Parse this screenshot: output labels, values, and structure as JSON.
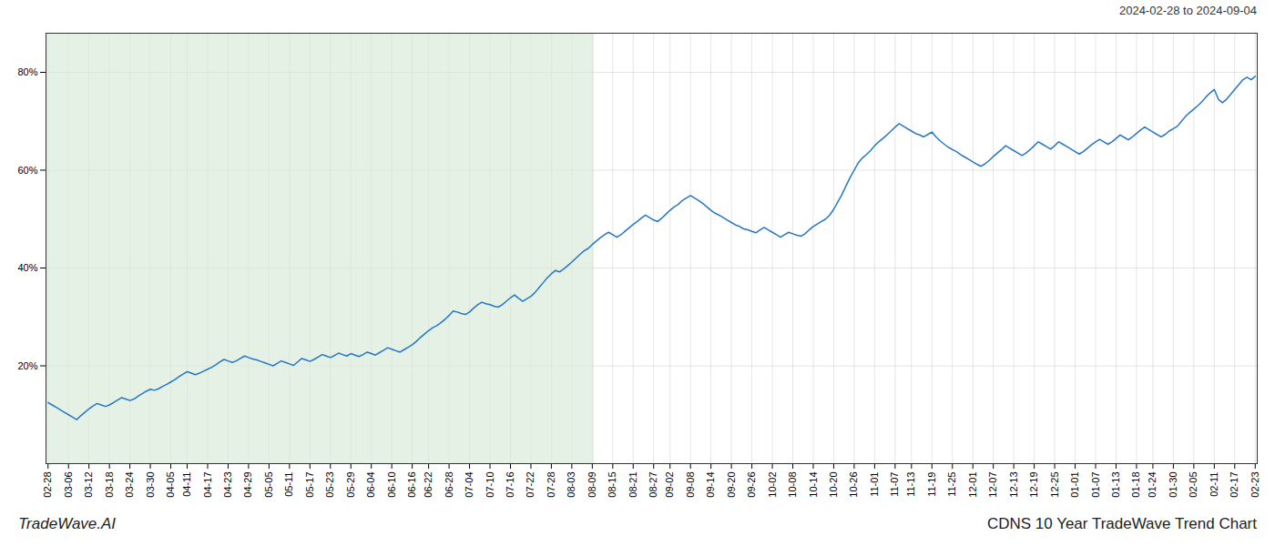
{
  "chart_data": {
    "type": "line",
    "title": "CDNS 10 Year TradeWave Trend Chart",
    "subtitle": "2024-02-28 to 2024-09-04",
    "annotations": [
      "TradeWave.AI"
    ],
    "color": "#2676c8",
    "grid": true,
    "ylim": [
      0,
      88
    ],
    "yticks": [
      {
        "value": 20,
        "label": "20%"
      },
      {
        "value": 40,
        "label": "40%"
      },
      {
        "value": 60,
        "label": "60%"
      },
      {
        "value": 80,
        "label": "80%"
      }
    ],
    "shaded_span": {
      "start": 0,
      "end": 133,
      "color": "#d6ead6"
    },
    "categories": [
      "02-28",
      null,
      null,
      null,
      null,
      "03-06",
      null,
      null,
      null,
      null,
      "03-12",
      null,
      null,
      null,
      null,
      "03-18",
      null,
      null,
      null,
      null,
      "03-24",
      null,
      null,
      null,
      null,
      "03-30",
      null,
      null,
      null,
      null,
      "04-05",
      null,
      null,
      null,
      "04-11",
      null,
      null,
      null,
      null,
      "04-17",
      null,
      null,
      null,
      null,
      "04-23",
      null,
      null,
      null,
      null,
      "04-29",
      null,
      null,
      null,
      null,
      "05-05",
      null,
      null,
      null,
      null,
      "05-11",
      null,
      null,
      null,
      null,
      "05-17",
      null,
      null,
      null,
      null,
      "05-23",
      null,
      null,
      null,
      null,
      "05-29",
      null,
      null,
      null,
      null,
      "06-04",
      null,
      null,
      null,
      null,
      "06-10",
      null,
      null,
      null,
      null,
      "06-16",
      null,
      null,
      null,
      "06-22",
      null,
      null,
      null,
      null,
      "06-28",
      null,
      null,
      null,
      null,
      "07-04",
      null,
      null,
      null,
      null,
      "07-10",
      null,
      null,
      null,
      null,
      "07-16",
      null,
      null,
      null,
      null,
      "07-22",
      null,
      null,
      null,
      null,
      "07-28",
      null,
      null,
      null,
      null,
      "08-03",
      null,
      null,
      null,
      null,
      "08-09",
      null,
      null,
      null,
      null,
      "08-15",
      null,
      null,
      null,
      null,
      "08-21",
      null,
      null,
      null,
      null,
      "08-27",
      null,
      null,
      null,
      "09-02",
      null,
      null,
      null,
      null,
      "09-08",
      null,
      null,
      null,
      null,
      "09-14",
      null,
      null,
      null,
      null,
      "09-20",
      null,
      null,
      null,
      null,
      "09-26",
      null,
      null,
      null,
      null,
      "10-02",
      null,
      null,
      null,
      null,
      "10-08",
      null,
      null,
      null,
      null,
      "10-14",
      null,
      null,
      null,
      null,
      "10-20",
      null,
      null,
      null,
      null,
      "10-26",
      null,
      null,
      null,
      null,
      "11-01",
      null,
      null,
      null,
      null,
      "11-07",
      null,
      null,
      null,
      "11-13",
      null,
      null,
      null,
      null,
      "11-19",
      null,
      null,
      null,
      null,
      "11-25",
      null,
      null,
      null,
      null,
      "12-01",
      null,
      null,
      null,
      null,
      "12-07",
      null,
      null,
      null,
      null,
      "12-13",
      null,
      null,
      null,
      null,
      "12-19",
      null,
      null,
      null,
      null,
      "12-25",
      null,
      null,
      null,
      null,
      "01-01",
      null,
      null,
      null,
      null,
      "01-07",
      null,
      null,
      null,
      null,
      "01-13",
      null,
      null,
      null,
      null,
      "01-18",
      null,
      null,
      null,
      "01-24",
      null,
      null,
      null,
      null,
      "01-30",
      null,
      null,
      null,
      null,
      "02-05",
      null,
      null,
      null,
      null,
      "02-11",
      null,
      null,
      null,
      null,
      "02-17",
      null,
      null,
      null,
      null,
      "02-23"
    ],
    "values": [
      12.5,
      12.0,
      11.5,
      11.0,
      10.5,
      10.0,
      9.5,
      9.0,
      9.8,
      10.5,
      11.2,
      11.8,
      12.3,
      12.0,
      11.7,
      12.0,
      12.5,
      13.0,
      13.5,
      13.2,
      12.9,
      13.2,
      13.8,
      14.3,
      14.8,
      15.2,
      15.0,
      15.3,
      15.8,
      16.2,
      16.7,
      17.2,
      17.8,
      18.3,
      18.8,
      18.5,
      18.2,
      18.5,
      18.9,
      19.3,
      19.7,
      20.2,
      20.8,
      21.3,
      21.0,
      20.7,
      21.0,
      21.5,
      22.0,
      21.7,
      21.4,
      21.2,
      20.9,
      20.6,
      20.3,
      20.0,
      20.5,
      21.0,
      20.7,
      20.4,
      20.1,
      20.8,
      21.5,
      21.2,
      20.9,
      21.3,
      21.8,
      22.3,
      22.0,
      21.7,
      22.1,
      22.6,
      22.3,
      22.0,
      22.5,
      22.2,
      21.9,
      22.3,
      22.8,
      22.5,
      22.2,
      22.7,
      23.2,
      23.7,
      23.4,
      23.1,
      22.8,
      23.3,
      23.8,
      24.3,
      25.0,
      25.8,
      26.5,
      27.2,
      27.8,
      28.2,
      28.8,
      29.5,
      30.3,
      31.2,
      31.0,
      30.7,
      30.5,
      31.0,
      31.8,
      32.5,
      33.0,
      32.7,
      32.5,
      32.2,
      32.0,
      32.5,
      33.2,
      33.9,
      34.5,
      33.8,
      33.2,
      33.7,
      34.2,
      35.0,
      36.0,
      37.0,
      38.0,
      38.8,
      39.5,
      39.2,
      39.8,
      40.5,
      41.2,
      42.0,
      42.8,
      43.5,
      44.0,
      44.8,
      45.5,
      46.2,
      46.8,
      47.3,
      46.8,
      46.3,
      46.8,
      47.5,
      48.2,
      48.9,
      49.5,
      50.2,
      50.8,
      50.3,
      49.8,
      49.5,
      50.2,
      51.0,
      51.8,
      52.5,
      53.0,
      53.8,
      54.3,
      54.8,
      54.3,
      53.8,
      53.2,
      52.5,
      51.8,
      51.2,
      50.8,
      50.3,
      49.8,
      49.3,
      48.8,
      48.5,
      48.0,
      47.8,
      47.5,
      47.2,
      47.8,
      48.3,
      47.8,
      47.3,
      46.8,
      46.3,
      46.8,
      47.3,
      47.0,
      46.7,
      46.5,
      47.0,
      47.8,
      48.5,
      49.0,
      49.5,
      50.0,
      50.8,
      52.0,
      53.5,
      55.0,
      56.8,
      58.5,
      60.0,
      61.5,
      62.5,
      63.2,
      64.0,
      65.0,
      65.8,
      66.5,
      67.2,
      68.0,
      68.8,
      69.5,
      69.0,
      68.5,
      68.0,
      67.5,
      67.2,
      66.8,
      67.3,
      67.8,
      66.8,
      66.0,
      65.3,
      64.7,
      64.2,
      63.8,
      63.2,
      62.7,
      62.2,
      61.7,
      61.2,
      60.8,
      61.3,
      62.0,
      62.8,
      63.5,
      64.2,
      65.0,
      64.5,
      64.0,
      63.5,
      63.0,
      63.5,
      64.2,
      65.0,
      65.8,
      65.3,
      64.8,
      64.3,
      65.0,
      65.8,
      65.3,
      64.8,
      64.3,
      63.8,
      63.3,
      63.8,
      64.5,
      65.2,
      65.8,
      66.3,
      65.8,
      65.3,
      65.8,
      66.5,
      67.2,
      66.7,
      66.2,
      66.8,
      67.5,
      68.2,
      68.8,
      68.3,
      67.8,
      67.3,
      66.8,
      67.3,
      68.0,
      68.5,
      69.0,
      70.0,
      71.0,
      71.8,
      72.5,
      73.2,
      74.0,
      75.0,
      75.8,
      76.5,
      74.5,
      73.8,
      74.5,
      75.5,
      76.5,
      77.5,
      78.5,
      79.0,
      78.5,
      79.2
    ]
  }
}
